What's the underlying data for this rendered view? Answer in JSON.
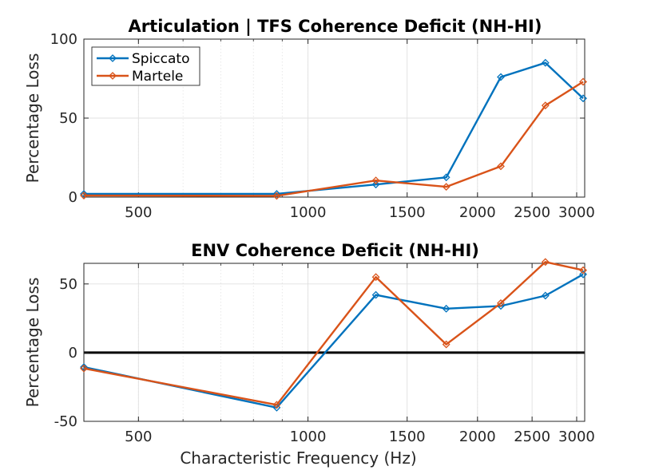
{
  "chart_data": [
    {
      "type": "line",
      "title": "Articulation | TFS Coherence Deficit (NH-HI)",
      "xlabel": "",
      "ylabel": "Percentage Loss",
      "xscale": "log",
      "xlim": [
        400,
        3100
      ],
      "ylim": [
        0,
        100
      ],
      "xticks": [
        500,
        1000,
        1500,
        2000,
        2500,
        3000
      ],
      "yticks": [
        0,
        50,
        100
      ],
      "grid": true,
      "legend": "top-left",
      "series": [
        {
          "name": "Spiccato",
          "color": "#0072BD",
          "x": [
            400,
            880,
            1320,
            1760,
            2200,
            2640,
            3080
          ],
          "y": [
            2,
            2,
            8,
            12.5,
            76,
            85,
            62.5
          ]
        },
        {
          "name": "Martele",
          "color": "#D95319",
          "x": [
            400,
            880,
            1320,
            1760,
            2200,
            2640,
            3080
          ],
          "y": [
            1,
            0.8,
            10.5,
            6.5,
            19.5,
            58,
            73
          ]
        }
      ]
    },
    {
      "type": "line",
      "title": "ENV Coherence Deficit (NH-HI)",
      "xlabel": "Characteristic Frequency (Hz)",
      "ylabel": "Percentage Loss",
      "xscale": "log",
      "xlim": [
        400,
        3100
      ],
      "ylim": [
        -50,
        65
      ],
      "xticks": [
        500,
        1000,
        1500,
        2000,
        2500,
        3000
      ],
      "yticks": [
        -50,
        0,
        50
      ],
      "grid": true,
      "reference_line": 0,
      "series": [
        {
          "name": "Spiccato",
          "color": "#0072BD",
          "x": [
            400,
            880,
            1320,
            1760,
            2200,
            2640,
            3080
          ],
          "y": [
            -10.5,
            -40,
            42,
            32,
            34,
            41.5,
            57
          ]
        },
        {
          "name": "Martele",
          "color": "#D95319",
          "x": [
            400,
            880,
            1320,
            1760,
            2200,
            2640,
            3080
          ],
          "y": [
            -11.5,
            -38,
            55,
            6,
            36,
            66,
            60
          ]
        }
      ]
    }
  ]
}
